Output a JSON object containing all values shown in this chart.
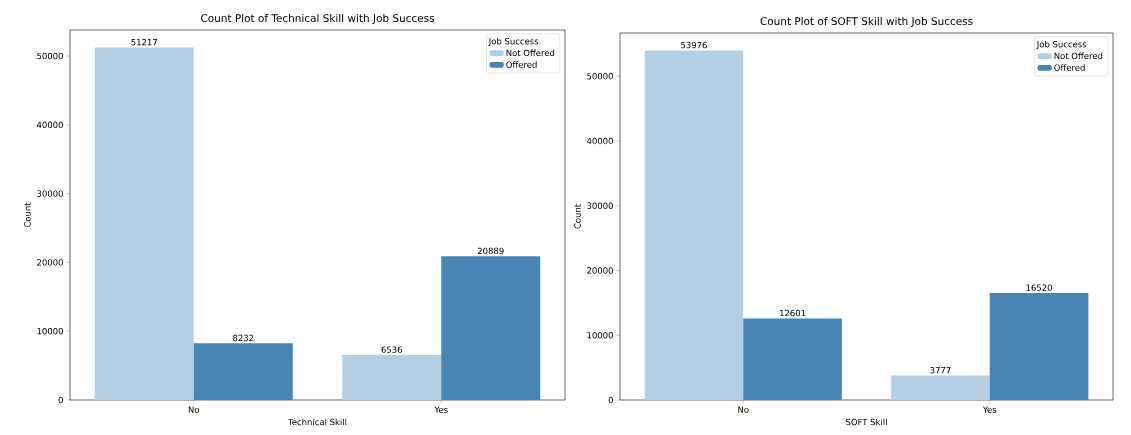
{
  "chart_data": [
    {
      "type": "bar",
      "title": "Count Plot of Technical Skill with Job Success",
      "xlabel": "Technical Skill",
      "ylabel": "Count",
      "legend_title": "Job Success",
      "categories": [
        "No",
        "Yes"
      ],
      "series": [
        {
          "name": "Not Offered",
          "color": "#b4cfe2",
          "values": [
            51217,
            6536
          ]
        },
        {
          "name": "Offered",
          "color": "#4884b4",
          "values": [
            8232,
            20889
          ]
        }
      ],
      "ylim": [
        0,
        53778
      ],
      "yticks": [
        0,
        10000,
        20000,
        30000,
        40000,
        50000
      ],
      "data_labels": true,
      "legend": "top right"
    },
    {
      "type": "bar",
      "title": "Count Plot of SOFT Skill with Job Success",
      "xlabel": "SOFT Skill",
      "ylabel": "Count",
      "legend_title": "Job Success",
      "categories": [
        "No",
        "Yes"
      ],
      "series": [
        {
          "name": "Not Offered",
          "color": "#b4cfe2",
          "values": [
            53976,
            3777
          ]
        },
        {
          "name": "Offered",
          "color": "#4884b4",
          "values": [
            12601,
            16520
          ]
        }
      ],
      "ylim": [
        0,
        56675
      ],
      "yticks": [
        0,
        10000,
        20000,
        30000,
        40000,
        50000
      ],
      "data_labels": true,
      "legend": "top right"
    }
  ]
}
